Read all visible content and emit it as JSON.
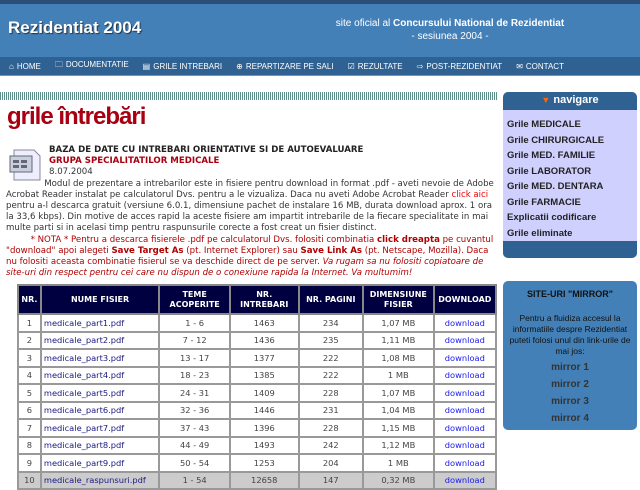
{
  "header": {
    "logo": "Rezidentiat 2004",
    "tag_pre": "site oficial al ",
    "tag_bold": "Concursului National de Rezidentiat",
    "tag_line2": "- sesiunea 2004 -"
  },
  "nav": [
    {
      "icon": "home-icon",
      "glyph": "⌂",
      "label": "HOME"
    },
    {
      "icon": "folder-icon",
      "glyph": "🗀",
      "label": "DOCUMENTATIE"
    },
    {
      "icon": "document-icon",
      "glyph": "▤",
      "label": "GRILE INTREBARI"
    },
    {
      "icon": "crosshair-icon",
      "glyph": "⊕",
      "label": "REPARTIZARE PE SALI"
    },
    {
      "icon": "checkbox-icon",
      "glyph": "☑",
      "label": "REZULTATE"
    },
    {
      "icon": "arrow-right-icon",
      "glyph": "⇨",
      "label": "POST-REZIDENTIAT"
    },
    {
      "icon": "mail-icon",
      "glyph": "✉",
      "label": "CONTACT"
    }
  ],
  "page_title": "grile întrebări",
  "intro": {
    "heading1": "BAZA DE DATE CU INTREBARI ORIENTATIVE SI DE AUTOEVALUARE",
    "heading2": "GRUPA SPECIALITATILOR MEDICALE",
    "date": "8.07.2004",
    "p1a": "Modul de prezentare a intrebarilor este in fisiere pentru download in format .pdf - aveti nevoie de Adobe Acrobat Reader instalat pe calculatorul Dvs. pentru a le vizualiza. Daca nu aveti Adobe Acrobat Reader ",
    "p1_link": "click aici",
    "p1b": " pentru a-l descarca gratuit (versiune 6.0.1, dimensiune pachet de instalare 16 MB, durata download aprox. 1 ora la 33,6 kbps). Din motive de acces rapid la aceste fisiere am impartit intrebarile de la fiecare specialitate in mai multe parti si in acelasi timp pentru raspunsurile corecte a fost creat un fisier distinct.",
    "n1": "* NOTA * Pentru a descarca fisierele .pdf pe calculatorul Dvs. folositi combinatia ",
    "n2": "click dreapta",
    "n3": " pe cuvantul \"download\" apoi alegeti ",
    "n4": "Save Target As",
    "n5": " (pt. Internet Explorer) sau ",
    "n6": "Save Link As",
    "n7": " (pt. Netscape, Mozilla). Daca nu folositi aceasta combinatie fisierul se va deschide direct de pe server. ",
    "n8": "Va rugam sa nu folositi copiatoare de site-uri din respect pentru cei care nu dispun de o conexiune rapida la Internet. Va multumim!"
  },
  "table": {
    "headers": [
      "NR.",
      "NUME FISIER",
      "TEME ACOPERITE",
      "NR. INTREBARI",
      "NR. PAGINI",
      "DIMENSIUNE FISIER",
      "DOWNLOAD"
    ],
    "rows": [
      [
        "1",
        "medicale_part1.pdf",
        "1 - 6",
        "1463",
        "234",
        "1,07 MB",
        "download"
      ],
      [
        "2",
        "medicale_part2.pdf",
        "7 - 12",
        "1436",
        "235",
        "1,11 MB",
        "download"
      ],
      [
        "3",
        "medicale_part3.pdf",
        "13 - 17",
        "1377",
        "222",
        "1,08 MB",
        "download"
      ],
      [
        "4",
        "medicale_part4.pdf",
        "18 - 23",
        "1385",
        "222",
        "1 MB",
        "download"
      ],
      [
        "5",
        "medicale_part5.pdf",
        "24 - 31",
        "1409",
        "228",
        "1,07 MB",
        "download"
      ],
      [
        "6",
        "medicale_part6.pdf",
        "32 - 36",
        "1446",
        "231",
        "1,04 MB",
        "download"
      ],
      [
        "7",
        "medicale_part7.pdf",
        "37 - 43",
        "1396",
        "228",
        "1,15 MB",
        "download"
      ],
      [
        "8",
        "medicale_part8.pdf",
        "44 - 49",
        "1493",
        "242",
        "1,12 MB",
        "download"
      ],
      [
        "9",
        "medicale_part9.pdf",
        "50 - 54",
        "1253",
        "204",
        "1 MB",
        "download"
      ],
      [
        "10",
        "medicale_raspunsuri.pdf",
        "1 - 54",
        "12658",
        "147",
        "0,32 MB",
        "download"
      ]
    ]
  },
  "sidebar": {
    "title": "navigare",
    "items": [
      "Grile MEDICALE",
      "Grile CHIRURGICALE",
      "Grile MED. FAMILIE",
      "Grile LABORATOR",
      "Grile MED. DENTARA",
      "Grile FARMACIE",
      "Explicatii codificare",
      "Grile eliminate"
    ]
  },
  "mirror": {
    "title": "SITE-URI \"MIRROR\"",
    "text": "Pentru a fluidiza accesul la informatiile despre Rezidentiat puteti folosi unul din link-urile de mai jos:",
    "links": [
      "mirror 1",
      "mirror 2",
      "mirror 3",
      "mirror 4"
    ]
  }
}
